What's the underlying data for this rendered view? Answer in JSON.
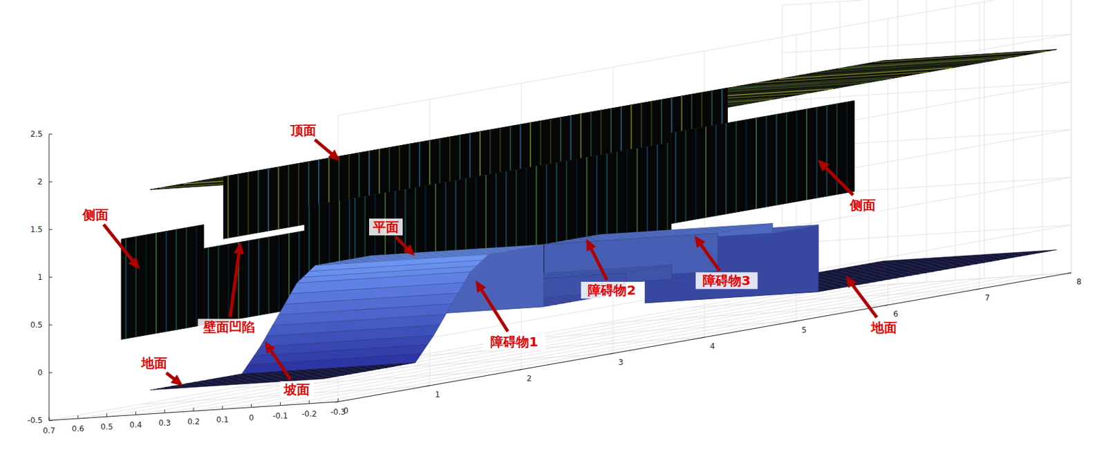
{
  "chart_data": {
    "type": "surface3d",
    "xlim": [
      -0.3,
      0.7
    ],
    "xticks": [
      -0.3,
      -0.2,
      -0.1,
      0,
      0.1,
      0.2,
      0.3,
      0.4,
      0.5,
      0.6,
      0.7
    ],
    "ylim": [
      0,
      8
    ],
    "yticks": [
      0,
      1,
      2,
      3,
      4,
      5,
      6,
      7,
      8
    ],
    "zlim": [
      -0.5,
      2.5
    ],
    "zticks": [
      -0.5,
      0,
      0.5,
      1,
      1.5,
      2,
      2.5
    ],
    "grid": true,
    "top": {
      "x": [
        -0.25,
        0.35
      ],
      "y": [
        0,
        8
      ],
      "z": 1.85
    },
    "side_walls": [
      {
        "x": 0.35,
        "segments": [
          {
            "y": [
              0.8,
              6.3
            ],
            "z": [
              1.2,
              1.85
            ]
          }
        ]
      },
      {
        "x": 0.45,
        "segments": [
          {
            "y": [
              0,
              0.9
            ],
            "z": [
              0.3,
              1.35
            ]
          },
          {
            "y": [
              0.9,
              2.0
            ],
            "z": [
              0.3,
              1.1
            ]
          },
          {
            "y": [
              2.0,
              2.5
            ],
            "z": [
              0.3,
              1.35
            ]
          },
          {
            "y": [
              2.5,
              6.0
            ],
            "z": [
              0.1,
              1.35
            ]
          },
          {
            "y": [
              6.0,
              8.0
            ],
            "z": [
              0.5,
              1.45
            ]
          }
        ]
      }
    ],
    "floor": {
      "x": [
        -0.25,
        0.35
      ],
      "y": [
        0,
        1.0,
        1.2,
        1.4,
        1.6,
        1.8,
        2.4,
        2.4,
        3.3,
        3.3,
        3.8,
        3.8,
        4.3,
        4.3,
        4.9,
        4.9,
        5.4,
        5.4,
        8
      ],
      "z": [
        -0.25,
        -0.25,
        0.0,
        0.3,
        0.6,
        0.75,
        0.75,
        0.1,
        0.1,
        0.3,
        0.3,
        0.15,
        0.15,
        0.55,
        0.55,
        0.45,
        0.45,
        -0.25,
        -0.25
      ]
    },
    "annotations": [
      {
        "text": "顶面",
        "x": 0.2,
        "y": 1.6,
        "z": 1.85
      },
      {
        "text": "侧面",
        "x": 0.45,
        "y": 0.2,
        "z": 1.0
      },
      {
        "text": "壁面凹陷",
        "x": 0.45,
        "y": 1.3,
        "z": 1.1
      },
      {
        "text": "平面",
        "x": 0.1,
        "y": 2.1,
        "z": 0.75
      },
      {
        "text": "地面",
        "x": 0.3,
        "y": 0.2,
        "z": -0.25
      },
      {
        "text": "坡面",
        "x": 0.35,
        "y": 1.25,
        "z": 0.05
      },
      {
        "text": "障碍物1",
        "x": 0.35,
        "y": 3.55,
        "z": 0.3
      },
      {
        "text": "障碍物2",
        "x": 0.3,
        "y": 4.6,
        "z": 0.55
      },
      {
        "text": "障碍物3",
        "x": 0.1,
        "y": 5.15,
        "z": 0.45
      },
      {
        "text": "地面",
        "x": 0.1,
        "y": 6.8,
        "z": -0.25
      },
      {
        "text": "侧面",
        "x": 0.45,
        "y": 7.6,
        "z": 0.9
      }
    ]
  }
}
